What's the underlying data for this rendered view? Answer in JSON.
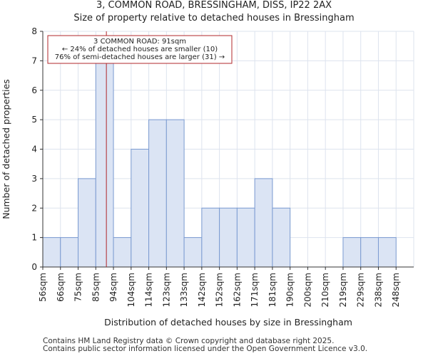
{
  "chart_data": {
    "type": "bar",
    "title": "3, COMMON ROAD, BRESSINGHAM, DISS, IP22 2AX",
    "subtitle": "Size of property relative to detached houses in Bressingham",
    "xlabel": "Distribution of detached houses by size in Bressingham",
    "ylabel": "Number of detached properties",
    "categories": [
      "56sqm",
      "66sqm",
      "75sqm",
      "85sqm",
      "94sqm",
      "104sqm",
      "114sqm",
      "123sqm",
      "133sqm",
      "142sqm",
      "152sqm",
      "162sqm",
      "171sqm",
      "181sqm",
      "190sqm",
      "200sqm",
      "210sqm",
      "219sqm",
      "229sqm",
      "238sqm",
      "248sqm"
    ],
    "values": [
      1,
      1,
      3,
      7,
      1,
      4,
      5,
      5,
      1,
      2,
      2,
      2,
      3,
      2,
      0,
      0,
      0,
      1,
      1,
      1,
      0
    ],
    "ylim": [
      0,
      8
    ],
    "yticks": [
      0,
      1,
      2,
      3,
      4,
      5,
      6,
      7,
      8
    ],
    "bar_color": "#dbe4f4",
    "bar_edge_color": "#7b9bd1",
    "marker": {
      "value_sqm": 91,
      "position_bins": 3.6,
      "color": "#b0272b"
    },
    "annotation": {
      "line1": "3 COMMON ROAD: 91sqm",
      "line2": "← 24% of detached houses are smaller (10)",
      "line3": "76% of semi-detached houses are larger (31) →"
    }
  },
  "footer": {
    "line1": "Contains HM Land Registry data © Crown copyright and database right 2025.",
    "line2": "Contains public sector information licensed under the Open Government Licence v3.0."
  }
}
